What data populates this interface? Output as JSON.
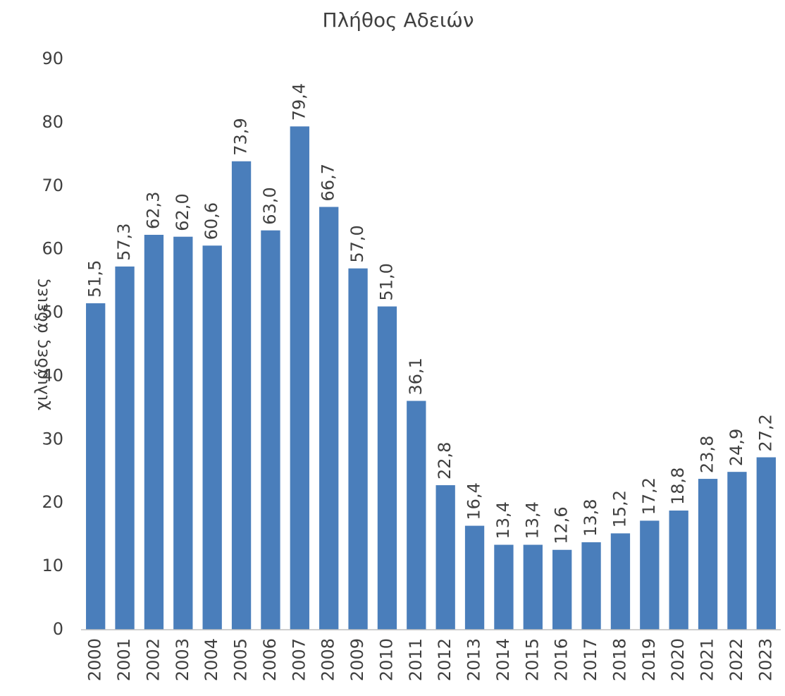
{
  "chart_data": {
    "type": "bar",
    "title": "Πλήθος Αδειών",
    "y_label": "χιλιάδες άδειες",
    "categories": [
      "2000",
      "2001",
      "2002",
      "2003",
      "2004",
      "2005",
      "2006",
      "2007",
      "2008",
      "2009",
      "2010",
      "2011",
      "2012",
      "2013",
      "2014",
      "2015",
      "2016",
      "2017",
      "2018",
      "2019",
      "2020",
      "2021",
      "2022",
      "2023"
    ],
    "values": [
      51.5,
      57.3,
      62.3,
      62.0,
      60.6,
      73.9,
      63.0,
      79.4,
      66.7,
      57.0,
      51.0,
      36.1,
      22.8,
      16.4,
      13.4,
      13.4,
      12.6,
      13.8,
      15.2,
      17.2,
      18.8,
      23.8,
      24.9,
      27.2
    ],
    "value_labels": [
      "51,5",
      "57,3",
      "62,3",
      "62,0",
      "60,6",
      "73,9",
      "63,0",
      "79,4",
      "66,7",
      "57,0",
      "51,0",
      "36,1",
      "22,8",
      "16,4",
      "13,4",
      "13,4",
      "12,6",
      "13,8",
      "15,2",
      "17,2",
      "18,8",
      "23,8",
      "24,9",
      "27,2"
    ],
    "color": "#4a7ebb",
    "ylim": [
      0,
      90
    ],
    "yticks": [
      0,
      10,
      20,
      30,
      40,
      50,
      60,
      70,
      80,
      90
    ],
    "grid": false
  }
}
